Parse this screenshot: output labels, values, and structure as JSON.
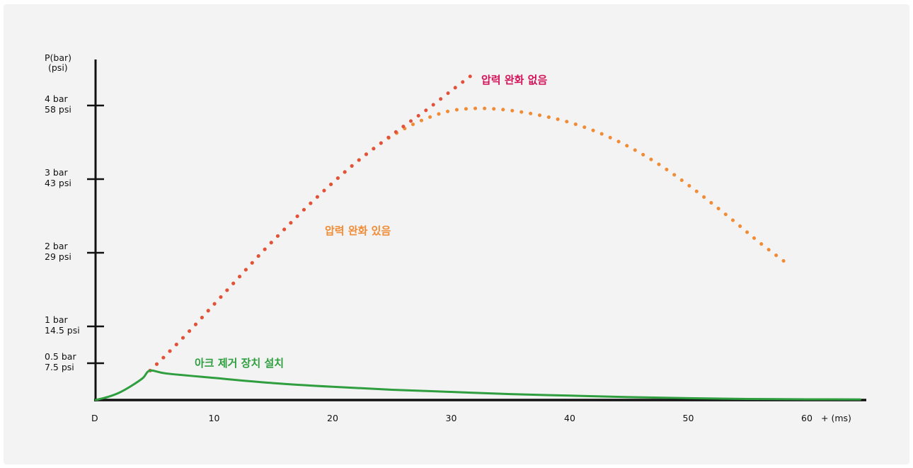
{
  "chart_data": {
    "type": "line",
    "ylabel_lines": [
      "P(bar)",
      "(psi)"
    ],
    "xlabel": "+ (ms)",
    "origin_label": "D",
    "x_ticks": [
      10,
      20,
      30,
      40,
      50,
      60
    ],
    "x_tick_labels": [
      "10",
      "20",
      "30",
      "40",
      "50",
      "60"
    ],
    "xlim": [
      0,
      65
    ],
    "ylim": [
      0,
      4.6
    ],
    "y_ticks": [
      {
        "value": 0.5,
        "label_lines": [
          "0.5 bar",
          "7.5 psi"
        ]
      },
      {
        "value": 1.0,
        "label_lines": [
          "1 bar",
          "14.5 psi"
        ]
      },
      {
        "value": 2.0,
        "label_lines": [
          "2 bar",
          "29 psi"
        ]
      },
      {
        "value": 3.0,
        "label_lines": [
          "3 bar",
          "43 psi"
        ]
      },
      {
        "value": 4.0,
        "label_lines": [
          "4 bar",
          "58 psi"
        ]
      }
    ],
    "series": [
      {
        "name": "압력 완화 없음",
        "color": "#d4145a",
        "dot_color": "#e2523a",
        "style": "dotted",
        "x": [
          4.6,
          6,
          8,
          10,
          12,
          14,
          16,
          18,
          20,
          22,
          24,
          26,
          28,
          30,
          31.8
        ],
        "y": [
          0.4,
          0.62,
          0.95,
          1.3,
          1.65,
          2.0,
          2.33,
          2.65,
          2.95,
          3.23,
          3.48,
          3.72,
          3.95,
          4.2,
          4.42
        ]
      },
      {
        "name": "압력 완화 있음",
        "color": "#f08c36",
        "style": "dotted",
        "x": [
          4.6,
          6,
          8,
          10,
          12,
          14,
          16,
          18,
          20,
          22,
          24,
          26,
          28,
          30,
          32,
          34,
          36,
          38,
          40,
          42,
          44,
          46,
          48,
          50,
          52,
          54,
          56,
          58.2
        ],
        "y": [
          0.4,
          0.62,
          0.95,
          1.3,
          1.65,
          2.0,
          2.33,
          2.65,
          2.95,
          3.23,
          3.48,
          3.68,
          3.83,
          3.93,
          3.96,
          3.95,
          3.91,
          3.85,
          3.77,
          3.66,
          3.52,
          3.35,
          3.15,
          2.92,
          2.67,
          2.41,
          2.14,
          1.87
        ]
      },
      {
        "name": "아크 제거 장치 설치",
        "color": "#2e9e3e",
        "style": "solid",
        "x": [
          0,
          1,
          2,
          3,
          4,
          4.6,
          6,
          10,
          15,
          20,
          25,
          30,
          35,
          40,
          45,
          50,
          55,
          60,
          64.5
        ],
        "y": [
          0,
          0.04,
          0.1,
          0.19,
          0.3,
          0.4,
          0.36,
          0.3,
          0.23,
          0.18,
          0.14,
          0.11,
          0.08,
          0.06,
          0.04,
          0.025,
          0.015,
          0.01,
          0.008
        ]
      }
    ],
    "annotations": [
      {
        "text": "압력 완화 없음",
        "series": 0
      },
      {
        "text": "압력 완화 있음",
        "series": 1
      },
      {
        "text": "아크 제거 장치 설치",
        "series": 2
      }
    ]
  }
}
